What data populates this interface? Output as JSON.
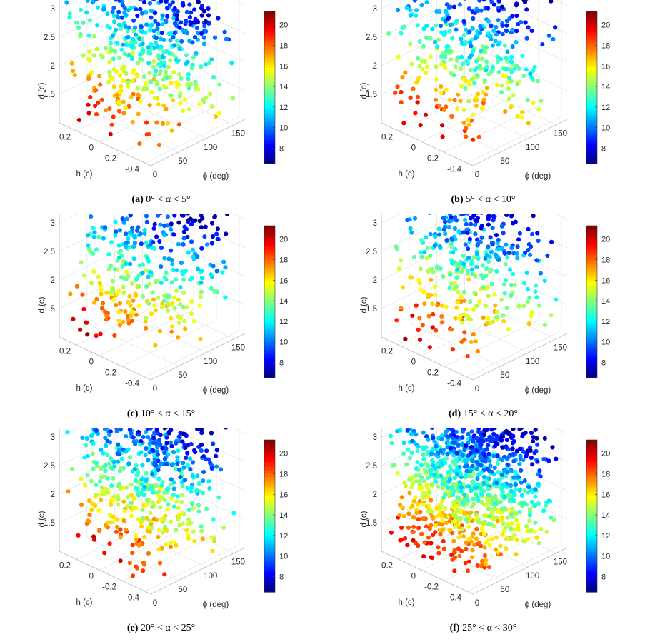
{
  "figure": {
    "common": {
      "x_axis": {
        "label": "h (c)",
        "ticks": [
          0.2,
          0,
          -0.2,
          -0.4
        ],
        "range": [
          -0.45,
          0.35
        ]
      },
      "y_axis": {
        "label": "ϕ (deg)",
        "ticks": [
          0,
          50,
          100,
          150
        ],
        "range": [
          0,
          170
        ]
      },
      "z_axis": {
        "label": "d (c)",
        "ticks": [
          1.5,
          2,
          2.5,
          3
        ],
        "range": [
          1.0,
          3.5
        ]
      },
      "colorbar": {
        "ticks": [
          8,
          10,
          12,
          14,
          16,
          18,
          20
        ],
        "range": [
          6.5,
          21.3
        ],
        "colormap": "jet"
      }
    }
  },
  "chart_data": [
    {
      "type": "scatter",
      "panel": "(a)",
      "caption": "0° < α < 5°",
      "n_points": 520,
      "seed": 11,
      "color_variable": "colorbar value",
      "xlabel": "h (c)",
      "ylabel": "ϕ (deg)",
      "zlabel": "d (c)"
    },
    {
      "type": "scatter",
      "panel": "(b)",
      "caption": "5° < α < 10°",
      "n_points": 400,
      "seed": 23,
      "color_variable": "colorbar value",
      "xlabel": "h (c)",
      "ylabel": "ϕ (deg)",
      "zlabel": "d (c)"
    },
    {
      "type": "scatter",
      "panel": "(c)",
      "caption": "10° < α < 15°",
      "n_points": 380,
      "seed": 37,
      "color_variable": "colorbar value",
      "xlabel": "h (c)",
      "ylabel": "ϕ (deg)",
      "zlabel": "d (c)"
    },
    {
      "type": "scatter",
      "panel": "(d)",
      "caption": "15° < α < 20°",
      "n_points": 420,
      "seed": 41,
      "color_variable": "colorbar value",
      "xlabel": "h (c)",
      "ylabel": "ϕ (deg)",
      "zlabel": "d (c)"
    },
    {
      "type": "scatter",
      "panel": "(e)",
      "caption": "20° < α < 25°",
      "n_points": 560,
      "seed": 53,
      "color_variable": "colorbar value",
      "xlabel": "h (c)",
      "ylabel": "ϕ (deg)",
      "zlabel": "d (c)"
    },
    {
      "type": "scatter",
      "panel": "(f)",
      "caption": "25° < α < 30°",
      "n_points": 1100,
      "seed": 67,
      "color_variable": "colorbar value",
      "xlabel": "h (c)",
      "ylabel": "ϕ (deg)",
      "zlabel": "d (c)"
    }
  ]
}
